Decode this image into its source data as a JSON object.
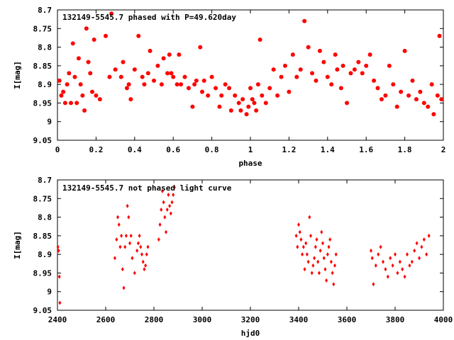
{
  "chart_data": [
    {
      "type": "scatter",
      "title": "132149-5545.7 phased with P=49.620day",
      "xlabel": "phase",
      "ylabel": "I[mag]",
      "xlim": [
        0,
        2
      ],
      "ylim": [
        9.05,
        8.7
      ],
      "y_inverted": true,
      "grid": false,
      "legend": "none",
      "marker_color": "#ff0000",
      "marker": "filled-circle",
      "xticks": [
        "0",
        "0.2",
        "0.4",
        "0.6",
        "0.8",
        "1",
        "1.2",
        "1.4",
        "1.6",
        "1.8",
        "2"
      ],
      "yticks": [
        "8.7",
        "8.75",
        "8.8",
        "8.85",
        "8.9",
        "8.95",
        "9",
        "9.05"
      ],
      "series": [
        {
          "x": [
            0.01,
            0.02,
            0.03,
            0.04,
            0.05,
            0.06,
            0.07,
            0.08,
            0.09,
            0.1,
            0.11,
            0.12,
            0.13,
            0.14,
            0.15,
            0.16,
            0.17,
            0.18,
            0.19,
            0.2,
            0.22,
            0.25,
            0.27,
            0.28,
            0.3,
            0.33,
            0.34,
            0.36,
            0.37,
            0.38,
            0.4,
            0.42,
            0.44,
            0.45,
            0.47,
            0.48,
            0.5,
            0.52,
            0.54,
            0.55,
            0.57,
            0.58,
            0.59,
            0.6,
            0.62,
            0.63,
            0.64,
            0.66,
            0.68,
            0.7,
            0.71,
            0.72,
            0.74,
            0.75,
            0.76,
            0.78,
            0.8,
            0.82,
            0.84,
            0.85,
            0.87,
            0.89,
            0.9,
            0.92,
            0.94,
            0.95,
            0.96,
            0.98,
            0.99,
            1.0,
            1.01,
            1.02,
            1.03,
            1.04,
            1.05,
            1.06,
            1.08,
            1.1,
            1.12,
            1.14,
            1.16,
            1.18,
            1.2,
            1.22,
            1.24,
            1.26,
            1.28,
            1.3,
            1.32,
            1.34,
            1.36,
            1.38,
            1.4,
            1.42,
            1.44,
            1.45,
            1.47,
            1.48,
            1.5,
            1.52,
            1.54,
            1.56,
            1.58,
            1.6,
            1.62,
            1.64,
            1.66,
            1.68,
            1.7,
            1.72,
            1.74,
            1.76,
            1.78,
            1.8,
            1.82,
            1.84,
            1.86,
            1.88,
            1.9,
            1.92,
            1.94,
            1.95,
            1.97,
            1.98,
            1.99
          ],
          "y": [
            8.89,
            8.93,
            8.92,
            8.95,
            8.9,
            8.87,
            8.95,
            8.79,
            8.88,
            8.95,
            8.83,
            8.9,
            8.93,
            8.97,
            8.75,
            8.84,
            8.87,
            8.92,
            8.78,
            8.93,
            8.94,
            8.77,
            8.88,
            8.71,
            8.86,
            8.88,
            8.84,
            8.91,
            8.9,
            8.94,
            8.86,
            8.77,
            8.88,
            8.9,
            8.87,
            8.81,
            8.89,
            8.85,
            8.9,
            8.83,
            8.87,
            8.82,
            8.87,
            8.88,
            8.9,
            8.82,
            8.9,
            8.88,
            8.91,
            8.96,
            8.9,
            8.89,
            8.8,
            8.92,
            8.89,
            8.93,
            8.88,
            8.91,
            8.96,
            8.93,
            8.9,
            8.91,
            8.97,
            8.93,
            8.95,
            8.97,
            8.94,
            8.98,
            8.96,
            8.91,
            8.94,
            8.95,
            8.97,
            8.9,
            8.78,
            8.93,
            8.95,
            8.91,
            8.86,
            8.93,
            8.88,
            8.85,
            8.92,
            8.82,
            8.88,
            8.86,
            8.73,
            8.8,
            8.87,
            8.89,
            8.81,
            8.84,
            8.88,
            8.9,
            8.82,
            8.86,
            8.91,
            8.85,
            8.95,
            8.87,
            8.86,
            8.84,
            8.87,
            8.85,
            8.82,
            8.89,
            8.91,
            8.94,
            8.93,
            8.85,
            8.9,
            8.96,
            8.92,
            8.81,
            8.93,
            8.89,
            8.94,
            8.92,
            8.95,
            8.96,
            8.9,
            8.98,
            8.93,
            8.77,
            8.94
          ],
          "name": ""
        }
      ]
    },
    {
      "type": "scatter",
      "title": "132149-5545.7 not phased light curve",
      "xlabel": "hjd0",
      "ylabel": "I[mag]",
      "xlim": [
        2400,
        4000
      ],
      "ylim": [
        9.05,
        8.7
      ],
      "y_inverted": true,
      "grid": false,
      "legend": "none",
      "marker_color": "#ff0000",
      "marker": "small-diamond",
      "xticks": [
        "2400",
        "2600",
        "2800",
        "3000",
        "3200",
        "3400",
        "3600",
        "3800",
        "4000"
      ],
      "yticks": [
        "8.7",
        "8.75",
        "8.8",
        "8.85",
        "8.9",
        "8.95",
        "9",
        "9.05"
      ],
      "series": [
        {
          "x": [
            2402,
            2405,
            2408,
            2410,
            2638,
            2645,
            2650,
            2655,
            2660,
            2665,
            2670,
            2675,
            2680,
            2685,
            2690,
            2695,
            2700,
            2705,
            2710,
            2720,
            2730,
            2735,
            2740,
            2745,
            2750,
            2755,
            2760,
            2765,
            2770,
            2775,
            2820,
            2825,
            2830,
            2835,
            2840,
            2845,
            2850,
            2855,
            2860,
            2865,
            2870,
            2875,
            2880,
            2885,
            3390,
            3395,
            3400,
            3405,
            3410,
            3415,
            3420,
            3425,
            3430,
            3435,
            3440,
            3445,
            3450,
            3455,
            3460,
            3465,
            3470,
            3475,
            3480,
            3485,
            3490,
            3495,
            3500,
            3505,
            3510,
            3515,
            3520,
            3525,
            3530,
            3535,
            3540,
            3545,
            3550,
            3555,
            3700,
            3705,
            3710,
            3720,
            3730,
            3740,
            3750,
            3760,
            3770,
            3780,
            3790,
            3800,
            3810,
            3820,
            3830,
            3840,
            3850,
            3860,
            3870,
            3880,
            3890,
            3900,
            3910,
            3920,
            3930,
            3940
          ],
          "y": [
            8.88,
            8.89,
            8.96,
            9.03,
            8.91,
            8.86,
            8.8,
            8.82,
            8.88,
            8.85,
            8.94,
            8.99,
            8.88,
            8.85,
            8.77,
            8.8,
            8.87,
            8.85,
            8.91,
            8.95,
            8.89,
            8.87,
            8.85,
            8.88,
            8.9,
            8.92,
            8.94,
            8.93,
            8.9,
            8.88,
            8.86,
            8.82,
            8.78,
            8.73,
            8.76,
            8.8,
            8.84,
            8.78,
            8.74,
            8.77,
            8.79,
            8.76,
            8.74,
            8.72,
            8.85,
            8.88,
            8.82,
            8.84,
            8.86,
            8.9,
            8.88,
            8.94,
            8.87,
            8.9,
            8.92,
            8.8,
            8.85,
            8.95,
            8.93,
            8.91,
            8.88,
            8.86,
            8.92,
            8.95,
            8.89,
            8.84,
            8.87,
            8.91,
            8.94,
            8.97,
            8.9,
            8.88,
            8.86,
            8.92,
            8.95,
            8.98,
            8.93,
            8.9,
            8.89,
            8.91,
            8.98,
            8.93,
            8.9,
            8.88,
            8.92,
            8.94,
            8.96,
            8.91,
            8.93,
            8.9,
            8.95,
            8.92,
            8.94,
            8.96,
            8.9,
            8.93,
            8.92,
            8.89,
            8.87,
            8.91,
            8.88,
            8.86,
            8.9,
            8.85
          ],
          "name": ""
        }
      ]
    }
  ]
}
